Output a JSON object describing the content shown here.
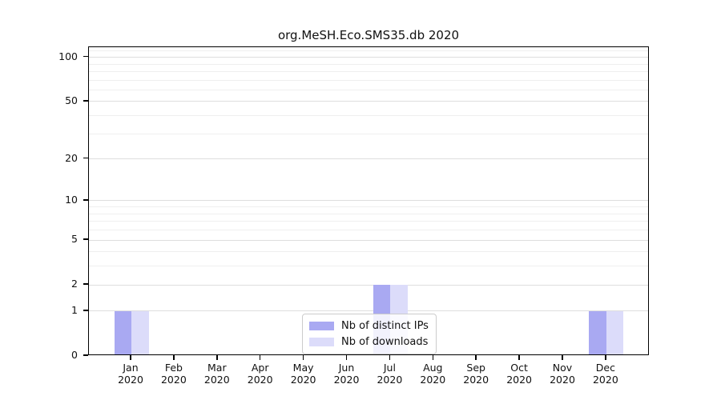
{
  "chart_data": {
    "type": "bar",
    "title": "org.MeSH.Eco.SMS35.db 2020",
    "year_label": "2020",
    "categories": [
      "Jan",
      "Feb",
      "Mar",
      "Apr",
      "May",
      "Jun",
      "Jul",
      "Aug",
      "Sep",
      "Oct",
      "Nov",
      "Dec"
    ],
    "series": [
      {
        "name": "Nb of distinct IPs",
        "color": "#a9a9f2",
        "values": [
          1,
          0,
          0,
          0,
          0,
          0,
          2,
          0,
          0,
          0,
          0,
          1
        ]
      },
      {
        "name": "Nb of downloads",
        "color": "#dcdcfa",
        "values": [
          1,
          0,
          0,
          0,
          0,
          0,
          2,
          0,
          0,
          0,
          0,
          1
        ]
      }
    ],
    "xlabel": "",
    "ylabel": "",
    "yscale": "log1p",
    "ylim": [
      0,
      117
    ],
    "yticks": [
      0,
      1,
      2,
      5,
      10,
      20,
      50,
      100
    ],
    "minor_gridlines": [
      3,
      4,
      6,
      7,
      8,
      9,
      30,
      40,
      60,
      70,
      80,
      90,
      110
    ],
    "grid": "horizontal",
    "legend_position": "lower center",
    "colors": {
      "major_grid": "#dedede",
      "minor_grid": "#efefef",
      "axis": "#000000",
      "legend_border": "#cccccc",
      "background": "#ffffff"
    }
  }
}
